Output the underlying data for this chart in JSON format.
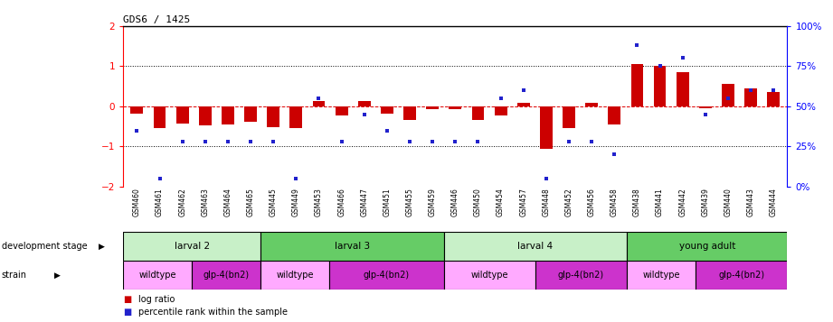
{
  "title": "GDS6 / 1425",
  "samples": [
    "GSM460",
    "GSM461",
    "GSM462",
    "GSM463",
    "GSM464",
    "GSM465",
    "GSM445",
    "GSM449",
    "GSM453",
    "GSM466",
    "GSM447",
    "GSM451",
    "GSM455",
    "GSM459",
    "GSM446",
    "GSM450",
    "GSM454",
    "GSM457",
    "GSM448",
    "GSM452",
    "GSM456",
    "GSM458",
    "GSM438",
    "GSM441",
    "GSM442",
    "GSM439",
    "GSM440",
    "GSM443",
    "GSM444"
  ],
  "log_ratio": [
    -0.18,
    -0.55,
    -0.42,
    -0.48,
    -0.45,
    -0.38,
    -0.52,
    -0.55,
    0.12,
    -0.22,
    0.12,
    -0.18,
    -0.35,
    -0.08,
    -0.08,
    -0.35,
    -0.22,
    0.08,
    -1.05,
    -0.55,
    0.08,
    -0.45,
    1.05,
    1.0,
    0.85,
    -0.05,
    0.55,
    0.45,
    0.35
  ],
  "percentile": [
    35,
    5,
    28,
    28,
    28,
    28,
    28,
    5,
    55,
    28,
    45,
    35,
    28,
    28,
    28,
    28,
    55,
    60,
    5,
    28,
    28,
    20,
    88,
    75,
    80,
    45,
    55,
    60,
    60
  ],
  "dev_stages": [
    {
      "label": "larval 2",
      "start": 0,
      "end": 6,
      "color": "#c8f0c8"
    },
    {
      "label": "larval 3",
      "start": 6,
      "end": 14,
      "color": "#66cc66"
    },
    {
      "label": "larval 4",
      "start": 14,
      "end": 22,
      "color": "#c8f0c8"
    },
    {
      "label": "young adult",
      "start": 22,
      "end": 29,
      "color": "#66cc66"
    }
  ],
  "strains": [
    {
      "label": "wildtype",
      "start": 0,
      "end": 3,
      "color": "#ffaaff"
    },
    {
      "label": "glp-4(bn2)",
      "start": 3,
      "end": 6,
      "color": "#cc33cc"
    },
    {
      "label": "wildtype",
      "start": 6,
      "end": 9,
      "color": "#ffaaff"
    },
    {
      "label": "glp-4(bn2)",
      "start": 9,
      "end": 14,
      "color": "#cc33cc"
    },
    {
      "label": "wildtype",
      "start": 14,
      "end": 18,
      "color": "#ffaaff"
    },
    {
      "label": "glp-4(bn2)",
      "start": 18,
      "end": 22,
      "color": "#cc33cc"
    },
    {
      "label": "wildtype",
      "start": 22,
      "end": 25,
      "color": "#ffaaff"
    },
    {
      "label": "glp-4(bn2)",
      "start": 25,
      "end": 29,
      "color": "#cc33cc"
    }
  ],
  "ylim": [
    -2.0,
    2.0
  ],
  "y2lim": [
    0,
    100
  ],
  "bar_color": "#cc0000",
  "dot_color": "#2222cc",
  "hline_color": "#dd0000",
  "grid_color": "#333333",
  "background": "#ffffff",
  "fig_width": 9.21,
  "fig_height": 3.57,
  "dpi": 100
}
